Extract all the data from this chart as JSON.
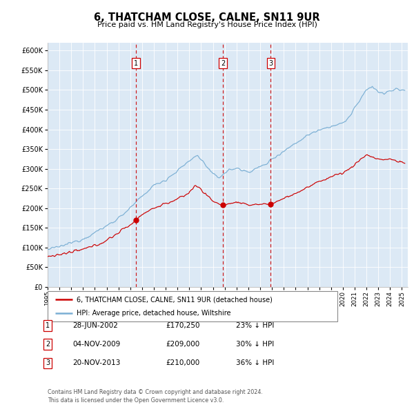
{
  "title": "6, THATCHAM CLOSE, CALNE, SN11 9UR",
  "subtitle": "Price paid vs. HM Land Registry's House Price Index (HPI)",
  "hpi_color": "#7bafd4",
  "price_color": "#cc0000",
  "plot_bg_color": "#dce9f5",
  "ylim": [
    0,
    620000
  ],
  "yticks": [
    0,
    50000,
    100000,
    150000,
    200000,
    250000,
    300000,
    350000,
    400000,
    450000,
    500000,
    550000,
    600000
  ],
  "transactions": [
    {
      "date_num": 2002.49,
      "price": 170250,
      "label": "1"
    },
    {
      "date_num": 2009.84,
      "price": 209000,
      "label": "2"
    },
    {
      "date_num": 2013.89,
      "price": 210000,
      "label": "3"
    }
  ],
  "legend_entries": [
    {
      "label": "6, THATCHAM CLOSE, CALNE, SN11 9UR (detached house)",
      "color": "#cc0000"
    },
    {
      "label": "HPI: Average price, detached house, Wiltshire",
      "color": "#7bafd4"
    }
  ],
  "table_rows": [
    {
      "num": "1",
      "date": "28-JUN-2002",
      "price": "£170,250",
      "hpi": "23% ↓ HPI"
    },
    {
      "num": "2",
      "date": "04-NOV-2009",
      "price": "£209,000",
      "hpi": "30% ↓ HPI"
    },
    {
      "num": "3",
      "date": "20-NOV-2013",
      "price": "£210,000",
      "hpi": "36% ↓ HPI"
    }
  ],
  "footer": "Contains HM Land Registry data © Crown copyright and database right 2024.\nThis data is licensed under the Open Government Licence v3.0.",
  "xmin": 1995.0,
  "xmax": 2025.5
}
